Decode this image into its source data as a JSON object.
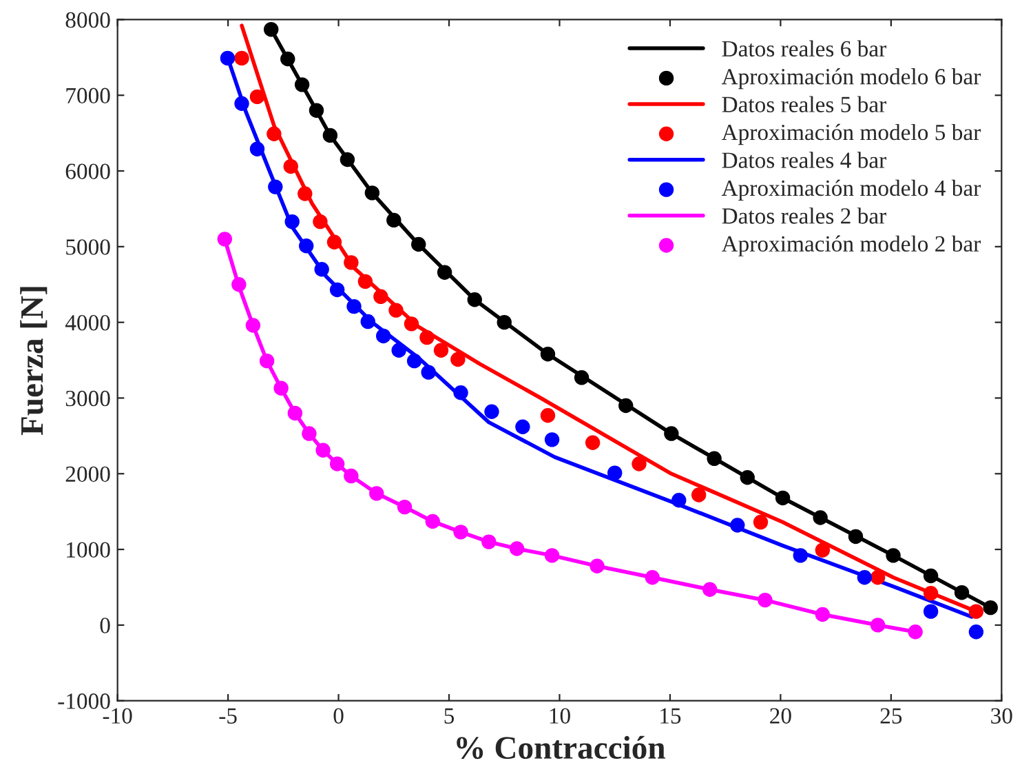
{
  "chart_data": {
    "type": "line",
    "xlabel": "% Contracción",
    "ylabel": "Fuerza [N]",
    "xlim": [
      -10,
      30
    ],
    "ylim": [
      -1000,
      8000
    ],
    "xticks": [
      -10,
      -5,
      0,
      5,
      10,
      15,
      20,
      25,
      30
    ],
    "yticks": [
      -1000,
      0,
      1000,
      2000,
      3000,
      4000,
      5000,
      6000,
      7000,
      8000
    ],
    "grid": false,
    "legend": "top right",
    "series": [
      {
        "name": "Datos reales 6 bar",
        "color": "#000000",
        "line_style": "solid",
        "x": [
          -3.05,
          -1.65,
          -0.38,
          1.52,
          3.62,
          6.16,
          9.47,
          15.06,
          20.1,
          25.1,
          29.5
        ],
        "values": [
          7870,
          7140,
          6470,
          5710,
          5030,
          4300,
          3580,
          2530,
          1680,
          920,
          230
        ]
      },
      {
        "type": "scatter",
        "name": "Aproximación modelo 6 bar",
        "color": "#000000",
        "marker": "circle",
        "x": [
          -3.05,
          -2.3,
          -1.65,
          -1.0,
          -0.38,
          0.4,
          1.52,
          2.5,
          3.62,
          4.8,
          6.16,
          7.5,
          9.47,
          11.0,
          13.0,
          15.06,
          17.0,
          18.5,
          20.1,
          21.8,
          23.4,
          25.1,
          26.8,
          28.2,
          29.5
        ],
        "values": [
          7870,
          7480,
          7140,
          6800,
          6470,
          6150,
          5710,
          5350,
          5030,
          4660,
          4300,
          4000,
          3580,
          3270,
          2900,
          2530,
          2200,
          1950,
          1680,
          1420,
          1170,
          920,
          650,
          430,
          230
        ]
      },
      {
        "name": "Datos reales 5 bar",
        "color": "#ff0000",
        "line_style": "solid",
        "x": [
          -4.38,
          -2.92,
          -1.2,
          0.7,
          3.62,
          6.4,
          9.15,
          15.06,
          20.1,
          25.1,
          28.85
        ],
        "values": [
          7920,
          6600,
          5570,
          4720,
          3940,
          3450,
          3000,
          2000,
          1360,
          630,
          180
        ]
      },
      {
        "type": "scatter",
        "name": "Aproximación modelo 5 bar",
        "color": "#ff0000",
        "marker": "circle",
        "x": [
          -4.38,
          -3.68,
          -2.92,
          -2.16,
          -1.52,
          -0.83,
          -0.19,
          0.57,
          1.21,
          1.91,
          2.6,
          3.3,
          4.0,
          4.64,
          5.4,
          9.47,
          11.5,
          13.6,
          16.3,
          19.1,
          21.9,
          24.4,
          26.8,
          28.85
        ],
        "values": [
          7490,
          6980,
          6490,
          6060,
          5700,
          5330,
          5060,
          4790,
          4540,
          4340,
          4160,
          3980,
          3800,
          3630,
          3510,
          2770,
          2410,
          2130,
          1720,
          1360,
          990,
          630,
          420,
          180
        ]
      },
      {
        "name": "Datos reales 4 bar",
        "color": "#0000ff",
        "line_style": "solid",
        "x": [
          -5.02,
          -4.19,
          -3.11,
          -2.1,
          -0.57,
          1.52,
          3.62,
          6.8,
          9.78,
          15.06,
          20.1,
          25.1,
          28.65
        ],
        "values": [
          7500,
          6780,
          5990,
          5260,
          4610,
          4000,
          3530,
          2680,
          2220,
          1630,
          1050,
          510,
          110
        ]
      },
      {
        "type": "scatter",
        "name": "Aproximación modelo 4 bar",
        "color": "#0000ff",
        "marker": "circle",
        "x": [
          -5.02,
          -4.38,
          -3.68,
          -2.86,
          -2.1,
          -1.46,
          -0.76,
          -0.06,
          0.7,
          1.33,
          2.03,
          2.73,
          3.43,
          4.07,
          5.53,
          6.93,
          8.33,
          9.66,
          12.5,
          15.4,
          18.05,
          20.9,
          23.8,
          26.8,
          28.85
        ],
        "values": [
          7490,
          6890,
          6290,
          5790,
          5330,
          5010,
          4700,
          4430,
          4210,
          4010,
          3820,
          3630,
          3490,
          3340,
          3070,
          2820,
          2620,
          2450,
          2010,
          1650,
          1320,
          920,
          630,
          180,
          -90
        ]
      },
      {
        "name": "Datos reales 2 bar",
        "color": "#ff00ff",
        "line_style": "solid",
        "x": [
          -5.15,
          -4.51,
          -3.87,
          -3.24,
          -2.6,
          -1.97,
          -1.33,
          -0.7,
          -0.06,
          0.57,
          1.72,
          2.99,
          4.26,
          5.53,
          6.8,
          8.07,
          9.66,
          11.7,
          14.2,
          16.8,
          19.3,
          21.9,
          24.4,
          26.1
        ],
        "values": [
          5100,
          4480,
          3960,
          3490,
          3130,
          2800,
          2530,
          2310,
          2130,
          1970,
          1740,
          1560,
          1370,
          1230,
          1100,
          1010,
          920,
          780,
          630,
          470,
          330,
          140,
          0,
          -90
        ]
      },
      {
        "type": "scatter",
        "name": "Aproximación modelo 2 bar",
        "color": "#ff00ff",
        "marker": "circle",
        "x": [
          -5.15,
          -4.51,
          -3.87,
          -3.24,
          -2.6,
          -1.97,
          -1.33,
          -0.7,
          -0.06,
          0.57,
          1.72,
          2.99,
          4.26,
          5.53,
          6.8,
          8.07,
          9.66,
          11.7,
          14.2,
          16.8,
          19.3,
          21.9,
          24.4,
          26.1
        ],
        "values": [
          5100,
          4500,
          3960,
          3490,
          3130,
          2800,
          2530,
          2310,
          2130,
          1970,
          1740,
          1560,
          1370,
          1230,
          1100,
          1010,
          920,
          780,
          630,
          470,
          330,
          140,
          0,
          -90
        ]
      }
    ]
  }
}
